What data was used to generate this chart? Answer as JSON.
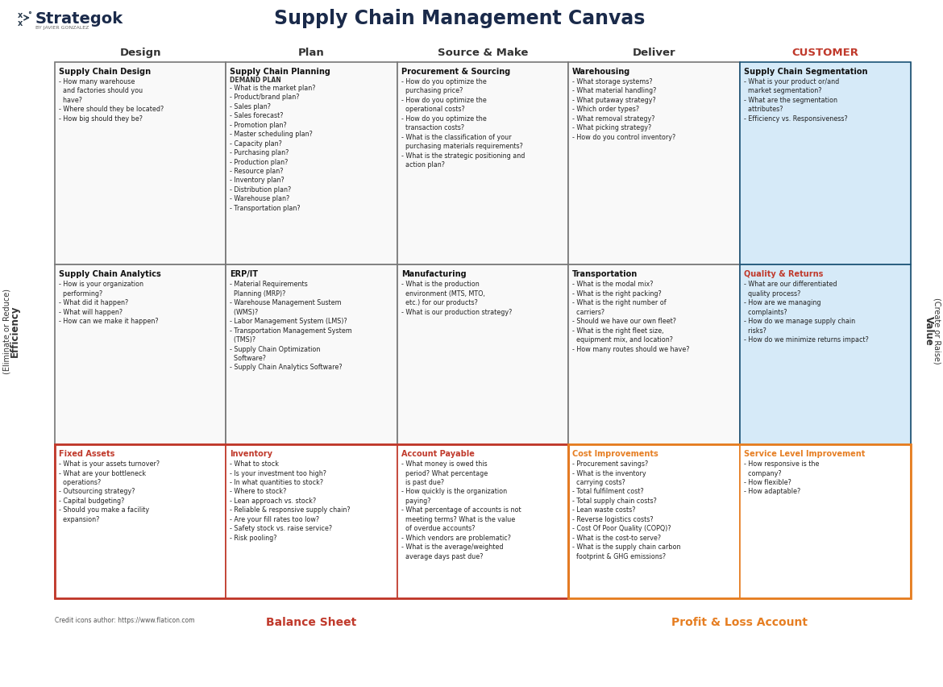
{
  "title": "Supply Chain Management Canvas",
  "brand": "Strategok",
  "brand_sub": "BY JAVIER GONZALEZ",
  "bg_color": "#ffffff",
  "col_headers": [
    "Design",
    "Plan",
    "Source & Make",
    "Deliver",
    "CUSTOMER"
  ],
  "col_header_colors": [
    "#333333",
    "#333333",
    "#333333",
    "#333333",
    "#c0392b"
  ],
  "left_label_top": "Efficiency",
  "left_label_mid": "(Eliminate or Reduce)",
  "right_label_top": "Value",
  "right_label_mid": "(Create or Raise)",
  "bottom_left": "Balance Sheet",
  "bottom_right": "Profit & Loss Account",
  "bottom_left_color": "#c0392b",
  "bottom_right_color": "#e67e22",
  "credit": "Credit icons author: https://www.flaticon.com",
  "cells": [
    {
      "row": 0,
      "col": 0,
      "title": "Supply Chain Design",
      "title_color": "#111111",
      "border_color": "#777777",
      "bg_color": "#f9f9f9",
      "text": "- How many warehouse\n  and factories should you\n  have?\n- Where should they be located?\n- How big should they be?"
    },
    {
      "row": 0,
      "col": 1,
      "title": "Supply Chain Planning",
      "title_color": "#111111",
      "border_color": "#777777",
      "bg_color": "#f9f9f9",
      "sub": "DEMAND PLAN",
      "text": "- What is the market plan?\n- Product/brand plan?\n- Sales plan?\n- Sales forecast?\n- Promotion plan?\n- Master scheduling plan?\n- Capacity plan?\n- Purchasing plan?\n- Production plan?\n- Resource plan?\n- Inventory plan?\n- Distribution plan?\n- Warehouse plan?\n- Transportation plan?"
    },
    {
      "row": 0,
      "col": 2,
      "title": "Procurement & Sourcing",
      "title_color": "#111111",
      "border_color": "#777777",
      "bg_color": "#f9f9f9",
      "text": "- How do you optimize the\n  purchasing price?\n- How do you optimize the\n  operational costs?\n- How do you optimize the\n  transaction costs?\n- What is the classification of your\n  purchasing materials requirements?\n- What is the strategic positioning and\n  action plan?"
    },
    {
      "row": 0,
      "col": 3,
      "title": "Warehousing",
      "title_color": "#111111",
      "border_color": "#777777",
      "bg_color": "#f9f9f9",
      "text": "- What storage systems?\n- What material handling?\n- What putaway strategy?\n- Which order types?\n- What removal strategy?\n- What picking strategy?\n- How do you control inventory?"
    },
    {
      "row": 0,
      "col": 4,
      "title": "Supply Chain Segmentation",
      "title_color": "#111111",
      "border_color": "#1a5276",
      "bg_color": "#d6eaf8",
      "text": "- What is your product or/and\n  market segmentation?\n- What are the segmentation\n  attributes?\n- Efficiency vs. Responsiveness?"
    },
    {
      "row": 1,
      "col": 0,
      "title": "Supply Chain Analytics",
      "title_color": "#111111",
      "border_color": "#777777",
      "bg_color": "#f9f9f9",
      "text": "- How is your organization\n  performing?\n- What did it happen?\n- What will happen?\n- How can we make it happen?"
    },
    {
      "row": 1,
      "col": 1,
      "title": "ERP/IT",
      "title_color": "#111111",
      "border_color": "#777777",
      "bg_color": "#f9f9f9",
      "text": "- Material Requirements\n  Planning (MRP)?\n- Warehouse Management Sustem\n  (WMS)?\n- Labor Management System (LMS)?\n- Transportation Management System\n  (TMS)?\n- Supply Chain Optimization\n  Software?\n- Supply Chain Analytics Software?"
    },
    {
      "row": 1,
      "col": 2,
      "title": "Manufacturing",
      "title_color": "#111111",
      "border_color": "#777777",
      "bg_color": "#f9f9f9",
      "text": "- What is the production\n  environment (MTS, MTO,\n  etc.) for our products?\n- What is our production strategy?"
    },
    {
      "row": 1,
      "col": 3,
      "title": "Transportation",
      "title_color": "#111111",
      "border_color": "#777777",
      "bg_color": "#f9f9f9",
      "text": "- What is the modal mix?\n- What is the right packing?\n- What is the right number of\n  carriers?\n- Should we have our own fleet?\n- What is the right fleet size,\n  equipment mix, and location?\n- How many routes should we have?"
    },
    {
      "row": 1,
      "col": 4,
      "title": "Quality & Returns",
      "title_color": "#c0392b",
      "border_color": "#1a5276",
      "bg_color": "#d6eaf8",
      "text": "- What are our differentiated\n  quality process?\n- How are we managing\n  complaints?\n- How do we manage supply chain\n  risks?\n- How do we minimize returns impact?"
    },
    {
      "row": 2,
      "col": 0,
      "title": "Fixed Assets",
      "title_color": "#c0392b",
      "border_color": "#c0392b",
      "bg_color": "#ffffff",
      "text": "- What is your assets turnover?\n- What are your bottleneck\n  operations?\n- Outsourcing strategy?\n- Capital budgeting?\n- Should you make a facility\n  expansion?"
    },
    {
      "row": 2,
      "col": 1,
      "title": "Inventory",
      "title_color": "#c0392b",
      "border_color": "#c0392b",
      "bg_color": "#ffffff",
      "text": "- What to stock\n- Is your investment too high?\n- In what quantities to stock?\n- Where to stock?\n- Lean approach vs. stock?\n- Reliable & responsive supply chain?\n- Are your fill rates too low?\n- Safety stock vs. raise service?\n- Risk pooling?"
    },
    {
      "row": 2,
      "col": 2,
      "title": "Account Payable",
      "title_color": "#c0392b",
      "border_color": "#c0392b",
      "bg_color": "#ffffff",
      "text": "- What money is owed this\n  period? What percentage\n  is past due?\n- How quickly is the organization\n  paying?\n- What percentage of accounts is not\n  meeting terms? What is the value\n  of overdue accounts?\n- Which vendors are problematic?\n- What is the average/weighted\n  average days past due?"
    },
    {
      "row": 2,
      "col": 3,
      "title": "Cost Improvements",
      "title_color": "#e67e22",
      "border_color": "#e67e22",
      "bg_color": "#ffffff",
      "text": "- Procurement savings?\n- What is the inventory\n  carrying costs?\n- Total fulfilment cost?\n- Total supply chain costs?\n- Lean waste costs?\n- Reverse logistics costs?\n- Cost Of Poor Quality (COPQ)?\n- What is the cost-to serve?\n- What is the supply chain carbon\n  footprint & GHG emissions?"
    },
    {
      "row": 2,
      "col": 4,
      "title": "Service Level Improvement",
      "title_color": "#e67e22",
      "border_color": "#e67e22",
      "bg_color": "#ffffff",
      "text": "- How responsive is the\n  company?\n- How flexible?\n- How adaptable?"
    }
  ]
}
